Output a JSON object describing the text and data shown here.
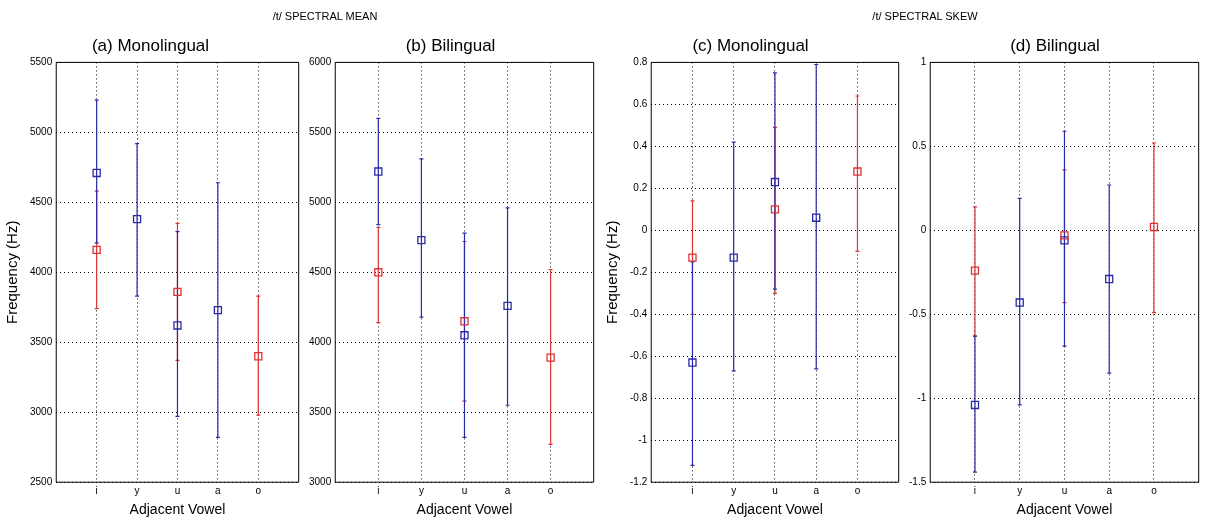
{
  "chart_data": [
    {
      "type": "scatter",
      "title": "(a) Monolingual",
      "xlabel": "Adjacent Vowel",
      "ylabel": "Frequency (Hz)",
      "annotations": [
        "/t/ SPECTRAL MEAN"
      ],
      "categories": [
        "i",
        "y",
        "u",
        "a",
        "o"
      ],
      "ylim": [
        2500,
        5500
      ],
      "yticks": [
        2500,
        3000,
        3500,
        4000,
        4500,
        5000,
        5500
      ],
      "grid": true,
      "marker": "square",
      "series": [
        {
          "color": "#dd3333",
          "values": [
            4160,
            null,
            3860,
            null,
            3400
          ],
          "errors": [
            [
              3740,
              4580
            ],
            null,
            [
              3370,
              4350
            ],
            null,
            [
              2980,
              3830
            ]
          ]
        },
        {
          "color": "#2a2aa8",
          "values": [
            4710,
            4380,
            3620,
            3730,
            null
          ],
          "errors": [
            [
              4210,
              5230
            ],
            [
              3830,
              4920
            ],
            [
              2970,
              4290
            ],
            [
              2820,
              4640
            ],
            null
          ]
        }
      ]
    },
    {
      "type": "scatter",
      "title": "(b) Bilingual",
      "xlabel": "Adjacent Vowel",
      "categories": [
        "i",
        "y",
        "u",
        "a",
        "o"
      ],
      "ylim": [
        3000,
        6000
      ],
      "yticks": [
        3000,
        3500,
        4000,
        4500,
        5000,
        5500,
        6000
      ],
      "grid": true,
      "marker": "square",
      "series": [
        {
          "color": "#dd3333",
          "values": [
            4500,
            null,
            4150,
            null,
            3890
          ],
          "errors": [
            [
              4140,
              4820
            ],
            null,
            [
              3580,
              4720
            ],
            null,
            [
              3270,
              4520
            ]
          ]
        },
        {
          "color": "#2a2aa8",
          "values": [
            5220,
            4730,
            4050,
            4260,
            null
          ],
          "errors": [
            [
              4840,
              5600
            ],
            [
              4180,
              5310
            ],
            [
              3320,
              4780
            ],
            [
              3550,
              4960
            ],
            null
          ]
        }
      ]
    },
    {
      "type": "scatter",
      "title": "(c) Monolingual",
      "xlabel": "Adjacent Vowel",
      "ylabel": "Frequency (Hz)",
      "annotations": [
        "/t/ SPECTRAL SKEW"
      ],
      "categories": [
        "i",
        "y",
        "u",
        "a",
        "o"
      ],
      "ylim": [
        -1.2,
        0.8
      ],
      "yticks": [
        -1.2,
        -1,
        -0.8,
        -0.6,
        -0.4,
        -0.2,
        0,
        0.2,
        0.4,
        0.6,
        0.8
      ],
      "grid": true,
      "marker": "square",
      "series": [
        {
          "color": "#dd3333",
          "values": [
            -0.13,
            null,
            0.1,
            null,
            0.28
          ],
          "errors": [
            [
              -0.4,
              0.14
            ],
            null,
            [
              -0.3,
              0.49
            ],
            null,
            [
              -0.1,
              0.64
            ]
          ]
        },
        {
          "color": "#2a2aa8",
          "values": [
            -0.63,
            -0.13,
            0.23,
            0.06,
            null
          ],
          "errors": [
            [
              -1.12,
              -0.15
            ],
            [
              -0.67,
              0.42
            ],
            [
              -0.28,
              0.75
            ],
            [
              -0.66,
              0.79
            ],
            null
          ]
        }
      ]
    },
    {
      "type": "scatter",
      "title": "(d) Bilingual",
      "xlabel": "Adjacent Vowel",
      "categories": [
        "i",
        "y",
        "u",
        "a",
        "o"
      ],
      "ylim": [
        -1.5,
        1
      ],
      "yticks": [
        -1.5,
        -1,
        -0.5,
        0,
        0.5,
        1
      ],
      "grid": true,
      "marker": "square",
      "series": [
        {
          "color": "#dd3333",
          "values": [
            -0.24,
            null,
            -0.03,
            null,
            0.02
          ],
          "errors": [
            [
              -0.63,
              0.14
            ],
            null,
            [
              -0.43,
              0.36
            ],
            null,
            [
              -0.49,
              0.52
            ]
          ]
        },
        {
          "color": "#2a2aa8",
          "values": [
            -1.04,
            -0.43,
            -0.06,
            -0.29,
            null
          ],
          "errors": [
            [
              -1.44,
              -0.63
            ],
            [
              -1.04,
              0.19
            ],
            [
              -0.69,
              0.59
            ],
            [
              -0.85,
              0.27
            ],
            null
          ]
        }
      ]
    }
  ]
}
